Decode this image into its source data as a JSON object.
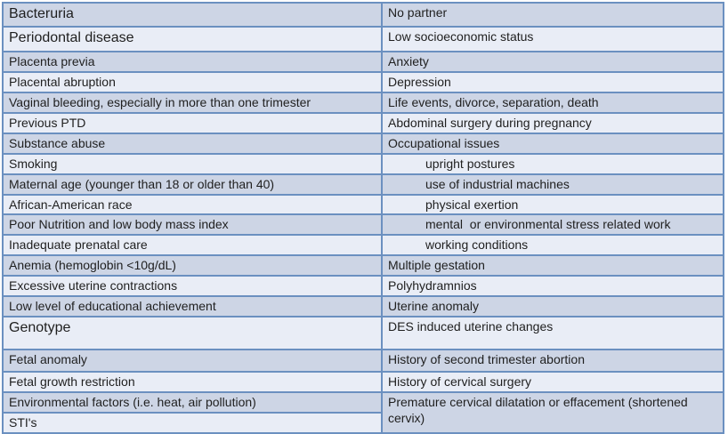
{
  "colors": {
    "row_dark": "#cdd5e5",
    "row_light": "#e9edf6",
    "border": "#6b90c0",
    "text": "#1f1f1f"
  },
  "table": {
    "description": "Two-column table of risk factors",
    "rows": [
      {
        "left": {
          "text": "Bacteruria",
          "large": true
        },
        "right": {
          "text": "No partner"
        }
      },
      {
        "left": {
          "text": "Periodontal disease",
          "large": true
        },
        "right": {
          "text": "Low socioeconomic status"
        }
      },
      {
        "left": {
          "text": "Placenta previa"
        },
        "right": {
          "text": "Anxiety"
        }
      },
      {
        "left": {
          "text": "Placental abruption"
        },
        "right": {
          "text": "Depression"
        }
      },
      {
        "left": {
          "text": "Vaginal bleeding, especially in more than one trimester"
        },
        "right": {
          "text": "Life events, divorce, separation, death"
        }
      },
      {
        "left": {
          "text": "Previous PTD"
        },
        "right": {
          "text": "Abdominal surgery during pregnancy"
        }
      },
      {
        "left": {
          "text": "Substance abuse"
        },
        "right": {
          "text": "Occupational issues"
        }
      },
      {
        "left": {
          "text": "Smoking"
        },
        "right": {
          "text": "upright postures",
          "indent": true
        }
      },
      {
        "left": {
          "text": "Maternal age (younger than 18 or older than 40)"
        },
        "right": {
          "text": "use of industrial machines",
          "indent": true
        }
      },
      {
        "left": {
          "text": "African-American race"
        },
        "right": {
          "text": "physical exertion",
          "indent": true
        }
      },
      {
        "left": {
          "text": "Poor Nutrition and low body mass index"
        },
        "right": {
          "text": "mental  or environmental stress related work",
          "indent": true
        }
      },
      {
        "left": {
          "text": "Inadequate prenatal care"
        },
        "right": {
          "text": "working conditions",
          "indent": true
        }
      },
      {
        "left": {
          "text": "Anemia (hemoglobin <10g/dL)"
        },
        "right": {
          "text": "Multiple gestation"
        }
      },
      {
        "left": {
          "text": "Excessive uterine contractions"
        },
        "right": {
          "text": "Polyhydramnios"
        }
      },
      {
        "left": {
          "text": "Low level of educational achievement"
        },
        "right": {
          "text": "Uterine anomaly"
        }
      },
      {
        "left": {
          "text": "Genotype",
          "large": true
        },
        "right": {
          "text": "DES induced uterine changes"
        }
      },
      {
        "left": {
          "text": "Fetal anomaly"
        },
        "right": {
          "text": "History of second trimester abortion"
        }
      },
      {
        "left": {
          "text": "Fetal growth restriction"
        },
        "right": {
          "text": "History of cervical surgery"
        }
      },
      {
        "left": {
          "text": "Environmental factors (i.e. heat, air pollution)"
        },
        "right": {
          "text": "Premature cervical dilatation or effacement (shortened cervix)",
          "rowspan": 2
        }
      },
      {
        "left": {
          "text": "STI's"
        },
        "right": null
      }
    ]
  }
}
